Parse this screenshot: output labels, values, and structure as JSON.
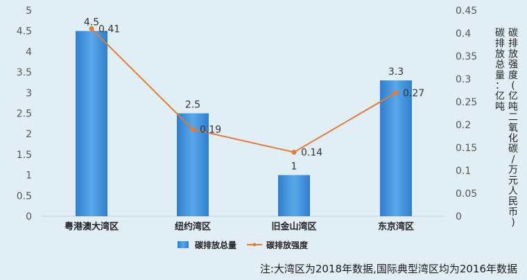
{
  "chart_data": {
    "type": "bar+line",
    "categories": [
      "粤港澳大湾区",
      "纽约湾区",
      "旧金山湾区",
      "东京湾区"
    ],
    "series": [
      {
        "name": "碳排放总量",
        "type": "bar",
        "axis": "left",
        "values": [
          4.5,
          2.5,
          1,
          3.3
        ],
        "labels": [
          "4.5",
          "2.5",
          "1",
          "3.3"
        ],
        "color": "#3e8ed6"
      },
      {
        "name": "碳排放强度",
        "type": "line",
        "axis": "right",
        "values": [
          0.41,
          0.19,
          0.14,
          0.27
        ],
        "labels": [
          "0.41",
          "0.19",
          "0.14",
          "0.27"
        ],
        "color": "#e07b39"
      }
    ],
    "y_left": {
      "min": 0,
      "max": 5,
      "ticks": [
        "0",
        "0.5",
        "1",
        "1.5",
        "2",
        "2.5",
        "3",
        "3.5",
        "4",
        "4.5",
        "5"
      ]
    },
    "y_right": {
      "min": 0,
      "max": 0.45,
      "ticks": [
        "0",
        "0.05",
        "0.1",
        "0.15",
        "0.2",
        "0.25",
        "0.3",
        "0.35",
        "0.4",
        "0.45"
      ]
    },
    "y_right_label_1": "碳排放强度(亿吨二氧化碳/万元人民币)",
    "y_right_label_2": "碳排放总量：亿吨",
    "legend_position": "bottom",
    "grid": false
  },
  "note": "注:大湾区为2018年数据,国际典型湾区均为2016年数据"
}
